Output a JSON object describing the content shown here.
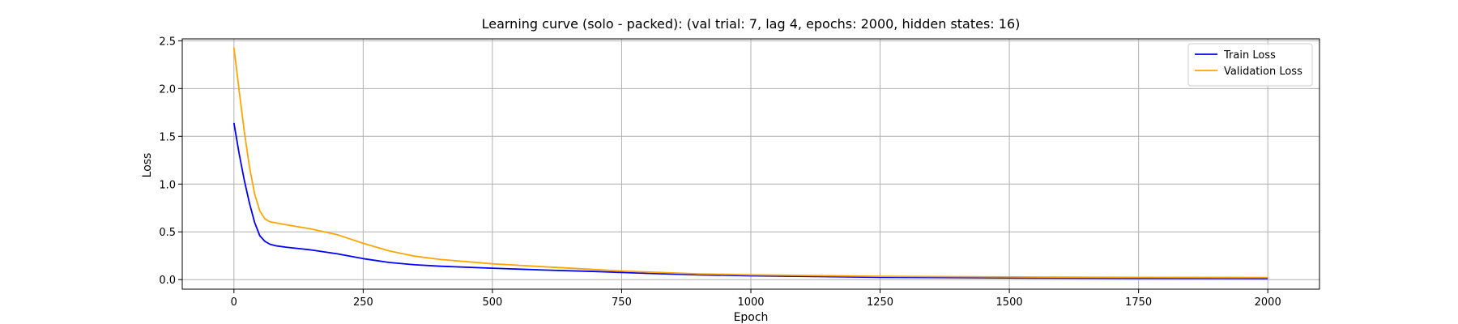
{
  "chart_data": {
    "type": "line",
    "title": "Learning curve (solo - packed): (val trial: 7, lag 4, epochs: 2000, hidden states: 16)",
    "xlabel": "Epoch",
    "ylabel": "Loss",
    "xlim": [
      -100,
      2100
    ],
    "ylim": [
      -0.1,
      2.52
    ],
    "xticks": [
      0,
      250,
      500,
      750,
      1000,
      1250,
      1500,
      1750,
      2000
    ],
    "yticks": [
      0.0,
      0.5,
      1.0,
      1.5,
      2.0,
      2.5
    ],
    "xtick_labels": [
      "0",
      "250",
      "500",
      "750",
      "1000",
      "1250",
      "1500",
      "1750",
      "2000"
    ],
    "ytick_labels": [
      "0.0",
      "0.5",
      "1.0",
      "1.5",
      "2.0",
      "2.5"
    ],
    "grid": true,
    "legend_position": "top-right",
    "series": [
      {
        "name": "Train Loss",
        "color": "#0000ff",
        "x": [
          0,
          10,
          20,
          30,
          40,
          50,
          60,
          70,
          80,
          100,
          150,
          200,
          250,
          300,
          350,
          400,
          500,
          600,
          700,
          750,
          800,
          900,
          1000,
          1250,
          1500,
          1750,
          2000
        ],
        "y": [
          1.64,
          1.32,
          1.04,
          0.8,
          0.6,
          0.46,
          0.4,
          0.37,
          0.355,
          0.34,
          0.31,
          0.27,
          0.22,
          0.18,
          0.155,
          0.14,
          0.12,
          0.1,
          0.085,
          0.075,
          0.065,
          0.05,
          0.04,
          0.025,
          0.018,
          0.014,
          0.012
        ]
      },
      {
        "name": "Validation Loss",
        "color": "#ffa500",
        "x": [
          0,
          10,
          20,
          30,
          40,
          50,
          60,
          70,
          80,
          100,
          150,
          200,
          250,
          300,
          350,
          400,
          500,
          600,
          700,
          750,
          800,
          900,
          1000,
          1250,
          1500,
          1750,
          2000
        ],
        "y": [
          2.43,
          1.98,
          1.55,
          1.18,
          0.9,
          0.72,
          0.635,
          0.605,
          0.595,
          0.575,
          0.53,
          0.47,
          0.38,
          0.3,
          0.245,
          0.21,
          0.165,
          0.135,
          0.105,
          0.09,
          0.08,
          0.06,
          0.05,
          0.035,
          0.028,
          0.024,
          0.022
        ]
      }
    ]
  }
}
